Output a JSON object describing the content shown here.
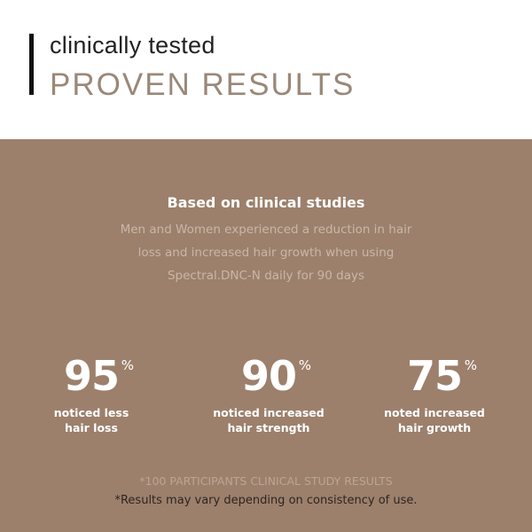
{
  "header": {
    "eyebrow": "clinically tested",
    "title": "PROVEN RESULTS"
  },
  "colors": {
    "accent": "#9a8878",
    "band": "#9c806c"
  },
  "body": {
    "subtitle": "Based on clinical studies",
    "lines": [
      "Men and Women experienced a reduction in hair",
      "loss and increased hair growth when using",
      "Spectral.DNC-N daily for 90 days"
    ]
  },
  "stats": [
    {
      "value": "95",
      "unit": "%",
      "label1": "noticed less",
      "label2": "hair loss"
    },
    {
      "value": "90",
      "unit": "%",
      "label1": "noticed increased",
      "label2": "hair strength"
    },
    {
      "value": "75",
      "unit": "%",
      "label1": "noted increased",
      "label2": "hair growth"
    }
  ],
  "footer": {
    "note1": "*100 PARTICIPANTS CLINICAL STUDY RESULTS",
    "note2": "*Results may vary depending on consistency of use."
  }
}
